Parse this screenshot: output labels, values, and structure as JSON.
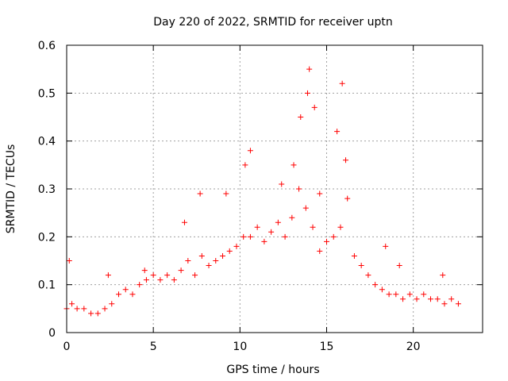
{
  "chart_data": {
    "type": "scatter",
    "title": "Day 220 of 2022, SRMTID for receiver uptn",
    "xlabel": "GPS time / hours",
    "ylabel": "SRMTID / TECUs",
    "xlim": [
      0,
      24
    ],
    "ylim": [
      0,
      0.6
    ],
    "xticks": [
      0,
      5,
      10,
      15,
      20
    ],
    "xtick_labels": [
      "0",
      "5",
      "10",
      "15",
      "20"
    ],
    "yticks": [
      0,
      0.1,
      0.2,
      0.3,
      0.4,
      0.5,
      0.6
    ],
    "ytick_labels": [
      "0",
      "0.1",
      "0.2",
      "0.3",
      "0.4",
      "0.5",
      "0.6"
    ],
    "grid": true,
    "marker": "+",
    "series": [
      {
        "name": "SRMTID",
        "color": "#ff0000",
        "x": [
          0.0,
          0.3,
          0.6,
          1.0,
          1.4,
          1.8,
          2.2,
          2.6,
          3.0,
          3.4,
          3.8,
          4.2,
          4.6,
          5.0,
          5.4,
          5.8,
          6.2,
          6.6,
          7.0,
          7.4,
          7.8,
          8.2,
          8.6,
          9.0,
          9.4,
          9.8,
          10.2,
          10.6,
          11.0,
          11.4,
          11.8,
          12.2,
          12.6,
          13.0,
          13.4,
          13.8,
          14.2,
          14.6,
          15.0,
          15.4,
          15.8,
          16.2,
          16.6,
          17.0,
          17.4,
          17.8,
          18.2,
          18.6,
          19.0,
          19.4,
          19.8,
          20.2,
          20.6,
          21.0,
          21.4,
          21.8,
          22.2,
          22.6,
          0.15,
          2.4,
          4.5,
          6.8,
          7.7,
          9.2,
          10.3,
          10.6,
          12.4,
          13.1,
          13.5,
          13.9,
          14.0,
          14.3,
          14.6,
          15.6,
          15.9,
          16.1,
          18.4,
          19.2,
          21.7
        ],
        "y": [
          0.05,
          0.06,
          0.05,
          0.05,
          0.04,
          0.04,
          0.05,
          0.06,
          0.08,
          0.09,
          0.08,
          0.1,
          0.11,
          0.12,
          0.11,
          0.12,
          0.11,
          0.13,
          0.15,
          0.12,
          0.16,
          0.14,
          0.15,
          0.16,
          0.17,
          0.18,
          0.2,
          0.2,
          0.22,
          0.19,
          0.21,
          0.23,
          0.2,
          0.24,
          0.3,
          0.26,
          0.22,
          0.17,
          0.19,
          0.2,
          0.22,
          0.28,
          0.16,
          0.14,
          0.12,
          0.1,
          0.09,
          0.08,
          0.08,
          0.07,
          0.08,
          0.07,
          0.08,
          0.07,
          0.07,
          0.06,
          0.07,
          0.06,
          0.15,
          0.12,
          0.13,
          0.23,
          0.29,
          0.29,
          0.35,
          0.38,
          0.31,
          0.35,
          0.45,
          0.5,
          0.55,
          0.47,
          0.29,
          0.42,
          0.52,
          0.36,
          0.18,
          0.14,
          0.12
        ]
      }
    ]
  }
}
